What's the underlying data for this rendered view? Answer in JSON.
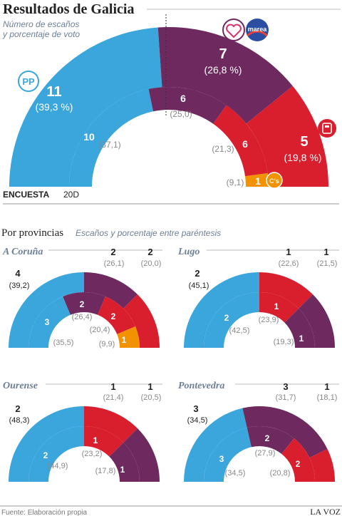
{
  "header": {
    "title": "Resultados de Galicia",
    "subtitle_line1": "Número de escaños",
    "subtitle_line2": "y porcentaje de voto"
  },
  "main_legend": {
    "outer": "ENCUESTA",
    "inner": "20D"
  },
  "provinces_header": {
    "title": "Por provincias",
    "subtitle": "Escaños y porcentaje entre paréntesis"
  },
  "footer": {
    "source": "Fuente: Elaboración propia",
    "brand": "LA VOZ"
  },
  "party_colors": {
    "PP": "#3ba6dc",
    "PM": "#6e2a5f",
    "PSOE": "#d91f2e",
    "CS": "#f39200"
  },
  "logos": {
    "pp": "PP",
    "marea": "marea",
    "psoe_icon": "psoe-rose-icon",
    "cs": "C's"
  },
  "chart_data": [
    {
      "type": "semicircle-parliament",
      "title": "Resultados de Galicia",
      "rings": [
        {
          "name": "ENCUESTA",
          "total_seats": 23,
          "parties": [
            {
              "party": "PP",
              "seats": 11,
              "pct_label": "(39,3 %)"
            },
            {
              "party": "PM",
              "seats": 7,
              "pct_label": "(26,8 %)"
            },
            {
              "party": "PSOE",
              "seats": 5,
              "pct_label": "(19,8 %)"
            }
          ]
        },
        {
          "name": "20D",
          "total_seats": 23,
          "parties": [
            {
              "party": "PP",
              "seats": 10,
              "pct_label": "(37,1)"
            },
            {
              "party": "PM",
              "seats": 6,
              "pct_label": "(25,0)"
            },
            {
              "party": "PSOE",
              "seats": 6,
              "pct_label": "(21,3)"
            },
            {
              "party": "CS",
              "seats": 1,
              "pct_label": "(9,1)"
            }
          ]
        }
      ]
    },
    {
      "type": "semicircle-parliament",
      "title": "A Coruña",
      "rings": [
        {
          "name": "ENCUESTA",
          "total_seats": 8,
          "parties": [
            {
              "party": "PP",
              "seats": 4,
              "pct_label": "(39,2)"
            },
            {
              "party": "PM",
              "seats": 2,
              "pct_label": "(26,1)"
            },
            {
              "party": "PSOE",
              "seats": 2,
              "pct_label": "(20,0)"
            }
          ]
        },
        {
          "name": "20D",
          "total_seats": 8,
          "parties": [
            {
              "party": "PP",
              "seats": 3,
              "pct_label": "(35,5)"
            },
            {
              "party": "PM",
              "seats": 2,
              "pct_label": "(26,4)"
            },
            {
              "party": "PSOE",
              "seats": 2,
              "pct_label": "(20,4)"
            },
            {
              "party": "CS",
              "seats": 1,
              "pct_label": "(9,9)"
            }
          ]
        }
      ]
    },
    {
      "type": "semicircle-parliament",
      "title": "Lugo",
      "rings": [
        {
          "name": "ENCUESTA",
          "total_seats": 4,
          "parties": [
            {
              "party": "PP",
              "seats": 2,
              "pct_label": "(45,1)"
            },
            {
              "party": "PSOE",
              "seats": 1,
              "pct_label": "(22,6)"
            },
            {
              "party": "PM",
              "seats": 1,
              "pct_label": "(21,5)"
            }
          ]
        },
        {
          "name": "20D",
          "total_seats": 4,
          "parties": [
            {
              "party": "PP",
              "seats": 2,
              "pct_label": "(42,5)"
            },
            {
              "party": "PSOE",
              "seats": 1,
              "pct_label": "(23,9)"
            },
            {
              "party": "PM",
              "seats": 1,
              "pct_label": "(19,3)"
            }
          ]
        }
      ]
    },
    {
      "type": "semicircle-parliament",
      "title": "Ourense",
      "rings": [
        {
          "name": "ENCUESTA",
          "total_seats": 4,
          "parties": [
            {
              "party": "PP",
              "seats": 2,
              "pct_label": "(48,3)"
            },
            {
              "party": "PSOE",
              "seats": 1,
              "pct_label": "(21,4)"
            },
            {
              "party": "PM",
              "seats": 1,
              "pct_label": "(20,5)"
            }
          ]
        },
        {
          "name": "20D",
          "total_seats": 4,
          "parties": [
            {
              "party": "PP",
              "seats": 2,
              "pct_label": "(44,9)"
            },
            {
              "party": "PSOE",
              "seats": 1,
              "pct_label": "(23,2)"
            },
            {
              "party": "PM",
              "seats": 1,
              "pct_label": "(17,8)"
            }
          ]
        }
      ]
    },
    {
      "type": "semicircle-parliament",
      "title": "Pontevedra",
      "rings": [
        {
          "name": "ENCUESTA",
          "total_seats": 7,
          "parties": [
            {
              "party": "PP",
              "seats": 3,
              "pct_label": "(34,5)"
            },
            {
              "party": "PM",
              "seats": 3,
              "pct_label": "(31,7)"
            },
            {
              "party": "PSOE",
              "seats": 1,
              "pct_label": "(18,1)"
            }
          ]
        },
        {
          "name": "20D",
          "total_seats": 7,
          "parties": [
            {
              "party": "PP",
              "seats": 3,
              "pct_label": "(34,5)"
            },
            {
              "party": "PM",
              "seats": 2,
              "pct_label": "(27,9)"
            },
            {
              "party": "PSOE",
              "seats": 2,
              "pct_label": "(20,8)"
            }
          ]
        }
      ]
    }
  ]
}
